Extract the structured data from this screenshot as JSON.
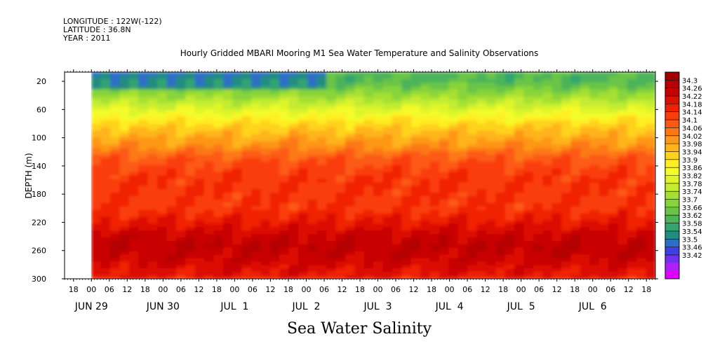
{
  "meta": {
    "longitude": "LONGITUDE : 122W(-122)",
    "latitude": "LATITUDE : 36.8N",
    "year": "YEAR : 2011"
  },
  "chart_data": {
    "type": "heatmap",
    "title": "Hourly Gridded MBARI Mooring M1 Sea Water Temperature and Salinity Observations",
    "xlabel": "Sea Water Salinity",
    "ylabel": "DEPTH (m)",
    "x_range_hours": [
      "2011-06-28 15:00",
      "2011-07-06 21:00"
    ],
    "data_start": "2011-06-29 00:00",
    "ylim": [
      300,
      7
    ],
    "y_ticks": [
      20,
      60,
      100,
      140,
      180,
      220,
      260,
      300
    ],
    "x_hour_ticks": [
      "18",
      "00",
      "06",
      "12",
      "18",
      "00",
      "06",
      "12",
      "18",
      "00",
      "06",
      "12",
      "18",
      "00",
      "06",
      "12",
      "18",
      "00",
      "06",
      "12",
      "18",
      "00",
      "06",
      "12",
      "18",
      "00",
      "06",
      "12",
      "18",
      "00",
      "06",
      "12",
      "18",
      "00",
      "06",
      "12",
      "18",
      "00",
      "06",
      "12"
    ],
    "x_date_ticks": [
      {
        "label": "JUN 29",
        "at": "2011-06-29 00:00"
      },
      {
        "label": "JUN 30",
        "at": "2011-06-30 00:00"
      },
      {
        "label": "JUL  1",
        "at": "2011-07-01 00:00"
      },
      {
        "label": "JUL  2",
        "at": "2011-07-02 00:00"
      },
      {
        "label": "JUL  3",
        "at": "2011-07-03 00:00"
      },
      {
        "label": "JUL  4",
        "at": "2011-07-04 00:00"
      },
      {
        "label": "JUL  5",
        "at": "2011-07-05 00:00"
      },
      {
        "label": "JUL  6",
        "at": "2011-07-06 00:00"
      }
    ],
    "colorbar_labels": [
      "34.3",
      "34.26",
      "34.22",
      "34.18",
      "34.14",
      "34.1",
      "34.06",
      "34.02",
      "33.98",
      "33.94",
      "33.9",
      "33.86",
      "33.82",
      "33.78",
      "33.74",
      "33.7",
      "33.66",
      "33.62",
      "33.58",
      "33.54",
      "33.5",
      "33.46",
      "33.42"
    ],
    "colorbar_colors": [
      "#a00000",
      "#b40000",
      "#c80000",
      "#dc1000",
      "#f02000",
      "#fa3c0a",
      "#fc5a12",
      "#fd7815",
      "#fe9618",
      "#ffb41c",
      "#ffd21e",
      "#ffee24",
      "#f4fb2c",
      "#def52c",
      "#c3ec30",
      "#a5e030",
      "#87d43a",
      "#69c447",
      "#4cb45a",
      "#33a470",
      "#238c82",
      "#2d6ec8",
      "#4040e0",
      "#7030ee",
      "#b020f6",
      "#e000ff"
    ],
    "depth_profile": [
      {
        "depth": 10,
        "value": 33.66
      },
      {
        "depth": 20,
        "value": 33.66
      },
      {
        "depth": 40,
        "value": 33.74
      },
      {
        "depth": 60,
        "value": 33.83
      },
      {
        "depth": 80,
        "value": 33.92
      },
      {
        "depth": 100,
        "value": 33.98
      },
      {
        "depth": 115,
        "value": 34.02
      },
      {
        "depth": 130,
        "value": 34.08
      },
      {
        "depth": 160,
        "value": 34.12
      },
      {
        "depth": 200,
        "value": 34.12
      },
      {
        "depth": 220,
        "value": 34.16
      },
      {
        "depth": 240,
        "value": 34.21
      },
      {
        "depth": 255,
        "value": 34.23
      },
      {
        "depth": 275,
        "value": 34.2
      },
      {
        "depth": 300,
        "value": 34.15
      }
    ],
    "low_salinity_patch": {
      "until": "2011-07-02 06:00",
      "min_depth": 7,
      "max_depth": 32,
      "value": 33.55
    },
    "grid": false
  }
}
